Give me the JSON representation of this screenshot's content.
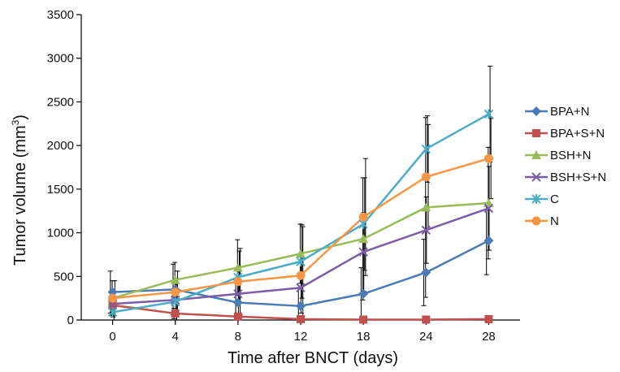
{
  "chart_data": {
    "type": "line",
    "title": "",
    "xlabel": "Time after BNCT (days)",
    "ylabel": "Tumor volume (mm3)",
    "ylabel_parts": {
      "main": "Tumor volume (mm",
      "sup": "3",
      "end": ")"
    },
    "ylim": [
      0,
      3500
    ],
    "yticks": [
      0,
      500,
      1000,
      1500,
      2000,
      2500,
      3000,
      3500
    ],
    "categories": [
      "0",
      "4",
      "8",
      "12",
      "18",
      "24",
      "28"
    ],
    "grid": false,
    "legend_position": "right",
    "series": [
      {
        "name": "BPA+N",
        "color": "#4a7bb7",
        "marker": "diamond",
        "values": [
          320,
          350,
          200,
          160,
          300,
          545,
          910
        ],
        "err": [
          240,
          290,
          260,
          210,
          300,
          380,
          390
        ]
      },
      {
        "name": "BPA+S+N",
        "color": "#c0504d",
        "marker": "square",
        "values": [
          170,
          75,
          40,
          10,
          5,
          5,
          10
        ],
        "err": [
          110,
          60,
          40,
          20,
          10,
          10,
          10
        ]
      },
      {
        "name": "BSH+N",
        "color": "#9bbb59",
        "marker": "triangle",
        "values": [
          250,
          460,
          600,
          760,
          930,
          1290,
          1340
        ],
        "err": [
          200,
          200,
          320,
          340,
          700,
          1030,
          640
        ]
      },
      {
        "name": "BSH+S+N",
        "color": "#7b5ea7",
        "marker": "x",
        "values": [
          185,
          230,
          300,
          370,
          780,
          1030,
          1280
        ],
        "err": [
          150,
          190,
          290,
          290,
          450,
          380,
          480
        ]
      },
      {
        "name": "C",
        "color": "#4bacc6",
        "marker": "asterisk",
        "values": [
          90,
          210,
          490,
          670,
          1100,
          1960,
          2360
        ],
        "err": [
          120,
          260,
          300,
          420,
          530,
          380,
          550
        ]
      },
      {
        "name": "N",
        "color": "#f79646",
        "marker": "circle",
        "values": [
          250,
          320,
          440,
          510,
          1180,
          1640,
          1850
        ],
        "err": [
          200,
          240,
          380,
          560,
          670,
          600,
          460
        ]
      }
    ]
  }
}
